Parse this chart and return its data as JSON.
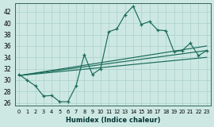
{
  "xlabel": "Humidex (Indice chaleur)",
  "bg_color": "#cde8e3",
  "grid_color": "#b0d4cc",
  "line_color": "#1a6b5a",
  "xlim": [
    -0.5,
    23.5
  ],
  "ylim": [
    25.5,
    43.5
  ],
  "yticks": [
    26,
    28,
    30,
    32,
    34,
    36,
    38,
    40,
    42
  ],
  "xticks": [
    0,
    1,
    2,
    3,
    4,
    5,
    6,
    7,
    8,
    9,
    10,
    11,
    12,
    13,
    14,
    15,
    16,
    17,
    18,
    19,
    20,
    21,
    22,
    23
  ],
  "main_x": [
    0,
    1,
    2,
    3,
    4,
    5,
    6,
    7,
    8,
    9,
    10,
    11,
    12,
    13,
    14,
    15,
    16,
    17,
    18,
    19,
    20,
    21,
    22,
    23
  ],
  "main_y": [
    31,
    30,
    29,
    27.2,
    27.3,
    26.2,
    26.2,
    29.0,
    34.5,
    31.0,
    32.0,
    38.5,
    39.0,
    41.5,
    43.0,
    39.8,
    40.3,
    38.8,
    38.7,
    35.0,
    35.2,
    36.5,
    34.3,
    35.2
  ],
  "trend1_x": [
    0,
    23
  ],
  "trend1_y": [
    30.8,
    35.2
  ],
  "trend2_x": [
    0,
    23
  ],
  "trend2_y": [
    30.8,
    34.0
  ],
  "trend3_x": [
    0,
    23
  ],
  "trend3_y": [
    30.8,
    36.0
  ]
}
